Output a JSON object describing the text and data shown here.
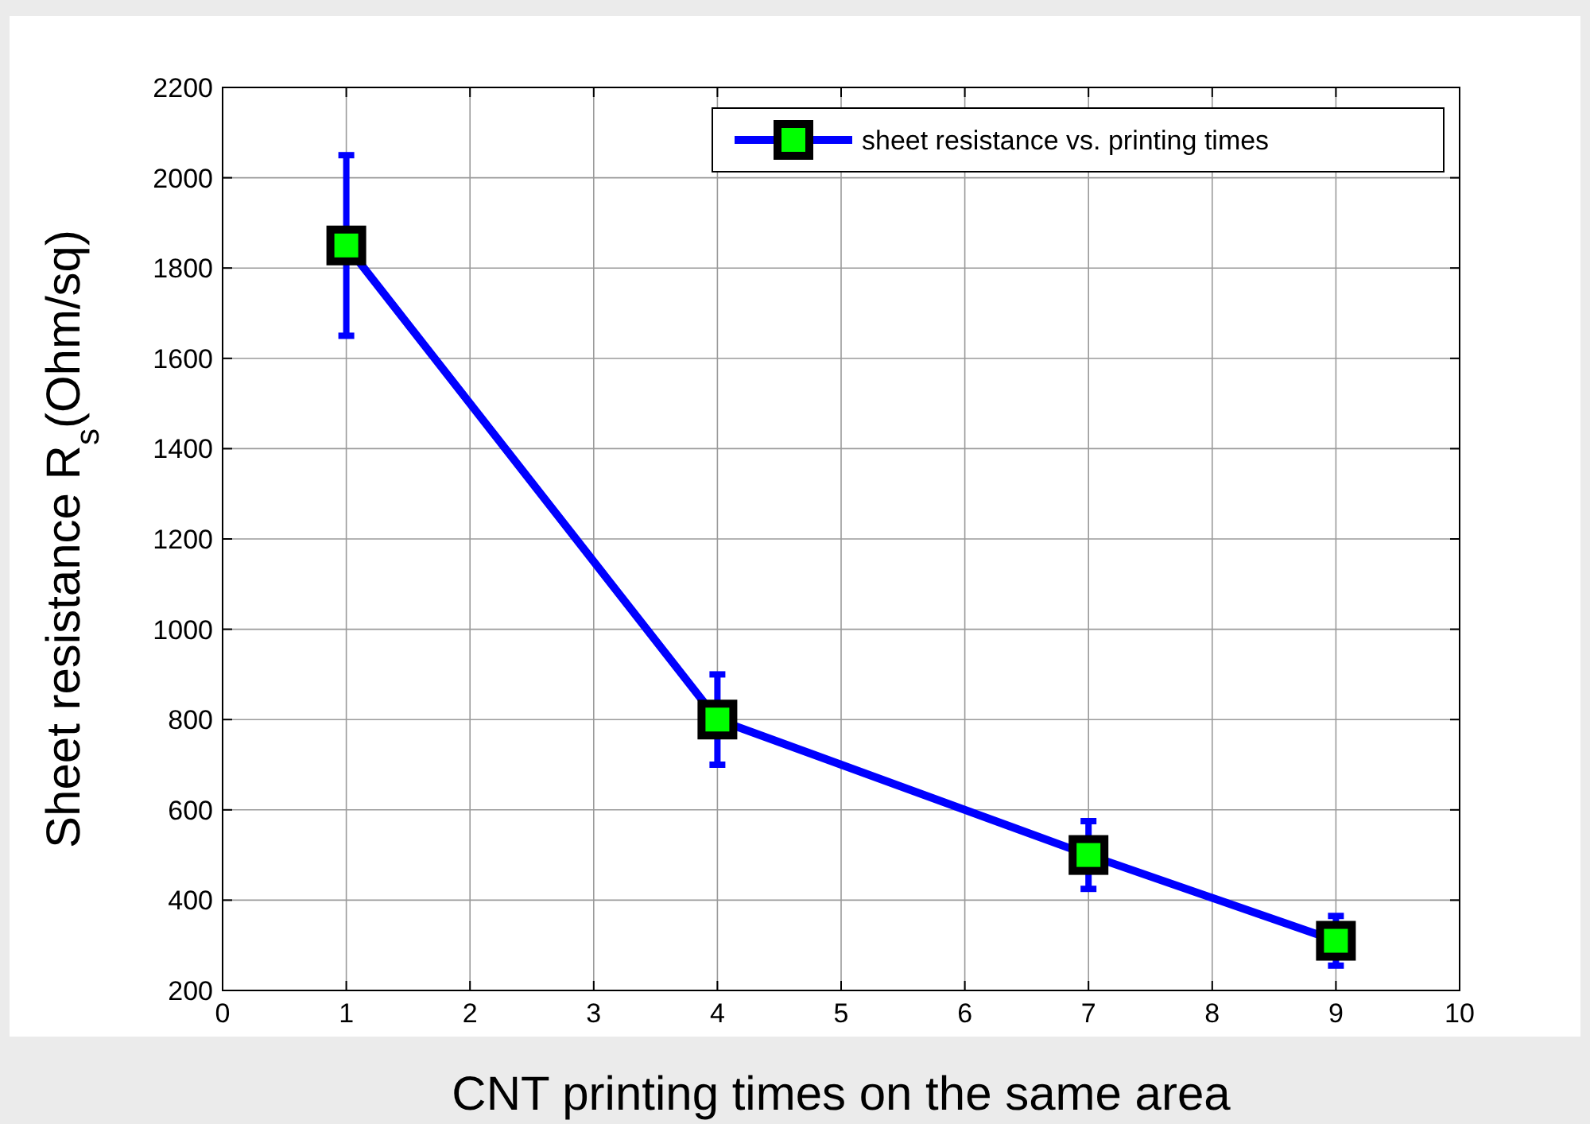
{
  "chart_data": {
    "type": "line",
    "xlabel": "CNT printing times on the same area",
    "ylabel": "Sheet resistance R$_{s}$(Ohm/sq)",
    "x": [
      1,
      4,
      7,
      9
    ],
    "series": [
      {
        "name": "sheet resistance vs. printing times",
        "color": "#0000ff",
        "values": [
          1850,
          800,
          500,
          310
        ],
        "errors": [
          200,
          100,
          75,
          55
        ]
      }
    ],
    "xlim": [
      0,
      10
    ],
    "xticks": [
      0,
      1,
      2,
      3,
      4,
      5,
      6,
      7,
      8,
      9,
      10
    ],
    "ylim": [
      200,
      2200
    ],
    "yticks": [
      200,
      400,
      600,
      800,
      1000,
      1200,
      1400,
      1600,
      1800,
      2000,
      2200
    ],
    "grid": true,
    "legend": "top right",
    "marker": "square",
    "line_style": "solid"
  }
}
